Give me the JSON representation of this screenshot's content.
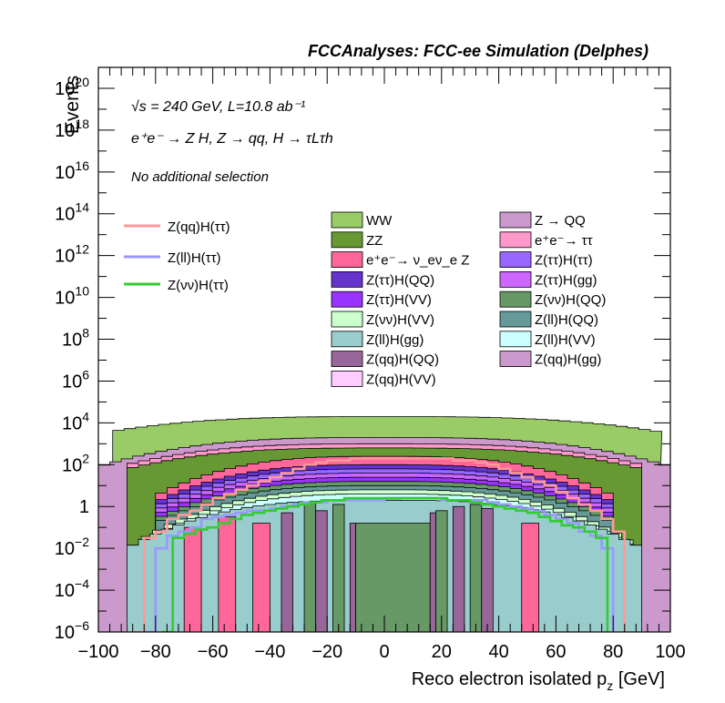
{
  "chart_data": {
    "type": "stacked-histogram-with-overlay",
    "title": "FCCAnalyses: FCC-ee Simulation (Delphes)",
    "annotations": {
      "energy_label": "√s = 240 GeV, L=10.8 ab⁻¹",
      "process_label": "e⁺e⁻ → Z H, Z → qq, H → τLτh",
      "selection_label": "No additional selection"
    },
    "xlabel": "Reco electron isolated p_z [GeV]",
    "ylabel": "Events",
    "xlim": [
      -100,
      100
    ],
    "ylim": [
      1e-06,
      1e+21
    ],
    "yscale": "log",
    "x_ticks": [
      "−100",
      "−80",
      "−60",
      "−40",
      "−20",
      "0",
      "20",
      "40",
      "60",
      "80",
      "100"
    ],
    "y_ticks": [
      {
        "base": "10",
        "exp": "−6"
      },
      {
        "base": "10",
        "exp": "−4"
      },
      {
        "base": "10",
        "exp": "−2"
      },
      {
        "base": "1",
        "exp": ""
      },
      {
        "base": "10",
        "exp": "2"
      },
      {
        "base": "10",
        "exp": "4"
      },
      {
        "base": "10",
        "exp": "6"
      },
      {
        "base": "10",
        "exp": "8"
      },
      {
        "base": "10",
        "exp": "10"
      },
      {
        "base": "10",
        "exp": "12"
      },
      {
        "base": "10",
        "exp": "14"
      },
      {
        "base": "10",
        "exp": "16"
      },
      {
        "base": "10",
        "exp": "18"
      },
      {
        "base": "10",
        "exp": "20"
      }
    ],
    "grid": false,
    "stack_envelopes": [
      {
        "name": "WW",
        "color": "#99cc66",
        "edge_pz": [
          -95,
          95
        ],
        "plateau_log10": 4.3,
        "edge_log10": 3.6
      },
      {
        "name": "Z → QQ",
        "color": "#cc99cc",
        "edge_pz": [
          -100,
          100
        ],
        "plateau_log10": 3.3,
        "edge_log10": 1.9
      },
      {
        "name": "e⁺e⁻ → ττ",
        "color": "#ff99cc",
        "edge_pz": [
          -90,
          90
        ],
        "plateau_log10": 3.0,
        "edge_log10": 2.0
      },
      {
        "name": "ZZ",
        "color": "#669933",
        "edge_pz": [
          -90,
          90
        ],
        "plateau_log10": 2.8,
        "edge_log10": 1.8
      },
      {
        "name": "e⁺e⁻ → ν_eν_e Z",
        "color": "#ff6699",
        "edge_pz": [
          -80,
          80
        ],
        "plateau_log10": 2.4,
        "edge_log10": 0.5
      },
      {
        "name": "Z(ττ)H(QQ)",
        "color": "#6633cc",
        "edge_pz": [
          -80,
          80
        ],
        "plateau_log10": 2.0,
        "edge_log10": 0.2
      },
      {
        "name": "Z(ττ)H(ττ)",
        "color": "#9966ff",
        "edge_pz": [
          -80,
          80
        ],
        "plateau_log10": 1.8,
        "edge_log10": 0.0
      },
      {
        "name": "Z(ττ)H(gg)",
        "color": "#cc66ff",
        "edge_pz": [
          -80,
          80
        ],
        "plateau_log10": 1.6,
        "edge_log10": -0.2
      },
      {
        "name": "Z(ττ)H(VV)",
        "color": "#9933ff",
        "edge_pz": [
          -80,
          80
        ],
        "plateau_log10": 1.4,
        "edge_log10": -0.4
      },
      {
        "name": "Z(νν)H(QQ)",
        "color": "#669966",
        "edge_pz": [
          -80,
          80
        ],
        "plateau_log10": 1.2,
        "edge_log10": -0.6
      },
      {
        "name": "Z(ll)H(QQ)",
        "color": "#669999",
        "edge_pz": [
          -80,
          80
        ],
        "plateau_log10": 1.0,
        "edge_log10": -0.8
      },
      {
        "name": "Z(νν)H(VV)",
        "color": "#ccffcc",
        "edge_pz": [
          -85,
          85
        ],
        "plateau_log10": 0.8,
        "edge_log10": -1.6
      },
      {
        "name": "Z(ll)H(VV)",
        "color": "#ccffff",
        "edge_pz": [
          -85,
          85
        ],
        "plateau_log10": 0.6,
        "edge_log10": -1.8
      },
      {
        "name": "Z(ll)H(gg)",
        "color": "#99cccc",
        "edge_pz": [
          -90,
          90
        ],
        "plateau_log10": 0.3,
        "edge_log10": -2.0
      }
    ],
    "spike_bars": [
      {
        "name": "e⁺e⁻ → ν_eν_e Z",
        "color": "#ff6699",
        "x0": -70,
        "x1": -64,
        "top_log10": -1.0
      },
      {
        "name": "e⁺e⁻ → ν_eν_e Z",
        "color": "#ff6699",
        "x0": -58,
        "x1": -52,
        "top_log10": -0.5
      },
      {
        "name": "e⁺e⁻ → ν_eν_e Z",
        "color": "#ff6699",
        "x0": -46,
        "x1": -40,
        "top_log10": -0.8
      },
      {
        "name": "Z(qq)H(QQ)",
        "color": "#996699",
        "x0": -36,
        "x1": -32,
        "top_log10": -0.3
      },
      {
        "name": "Z(νν)H(QQ)",
        "color": "#669966",
        "x0": -28,
        "x1": -24,
        "top_log10": 0.2
      },
      {
        "name": "Z(qq)H(QQ)",
        "color": "#996699",
        "x0": -24,
        "x1": -20,
        "top_log10": -0.2
      },
      {
        "name": "Z(νν)H(QQ)",
        "color": "#669966",
        "x0": -18,
        "x1": -14,
        "top_log10": 0.1
      },
      {
        "name": "Z(qq)H(QQ)",
        "color": "#996699",
        "x0": -12,
        "x1": -10,
        "top_log10": -0.8
      },
      {
        "name": "Z(νν)H(QQ)",
        "color": "#669966",
        "x0": -10,
        "x1": 16,
        "top_log10": -0.8
      },
      {
        "name": "Z(qq)H(QQ)",
        "color": "#996699",
        "x0": 16,
        "x1": 18,
        "top_log10": -0.3
      },
      {
        "name": "Z(νν)H(QQ)",
        "color": "#669966",
        "x0": 18,
        "x1": 22,
        "top_log10": -0.2
      },
      {
        "name": "Z(qq)H(QQ)",
        "color": "#996699",
        "x0": 24,
        "x1": 28,
        "top_log10": 0.0
      },
      {
        "name": "Z(νν)H(QQ)",
        "color": "#669966",
        "x0": 30,
        "x1": 34,
        "top_log10": 0.1
      },
      {
        "name": "Z(qq)H(QQ)",
        "color": "#996699",
        "x0": 34,
        "x1": 38,
        "top_log10": -0.1
      },
      {
        "name": "e⁺e⁻ → ν_eν_e Z",
        "color": "#ff6699",
        "x0": 48,
        "x1": 54,
        "top_log10": -0.8
      }
    ],
    "overlay_series": [
      {
        "name": "Z(qq)H(ττ)",
        "color": "#ff9999",
        "x": [
          -88,
          -84,
          -80,
          -76,
          -72,
          -68,
          -64,
          -60,
          -56,
          -52,
          -48,
          -44,
          -40,
          -36,
          -32,
          -28,
          -24,
          -20,
          -16,
          -12,
          -8,
          -4,
          0,
          4,
          8,
          12,
          16,
          20,
          24,
          28,
          32,
          36,
          40,
          44,
          48,
          52,
          56,
          60,
          64,
          68,
          72,
          76,
          80,
          84
        ],
        "y_log10": [
          -6,
          -1.5,
          -1.2,
          -0.6,
          -0.4,
          -0.2,
          0.1,
          0.4,
          0.6,
          0.8,
          1.0,
          1.2,
          1.4,
          1.6,
          1.8,
          2.0,
          2.1,
          2.2,
          2.2,
          2.3,
          2.3,
          2.3,
          2.3,
          2.3,
          2.3,
          2.3,
          2.3,
          2.3,
          2.2,
          2.2,
          2.1,
          2.0,
          1.8,
          1.6,
          1.4,
          1.2,
          1.0,
          0.7,
          0.4,
          0.1,
          -0.2,
          -0.6,
          -1.2,
          -6
        ]
      },
      {
        "name": "Z(ll)H(ττ)",
        "color": "#9999ff",
        "x": [
          -84,
          -80,
          -76,
          -72,
          -68,
          -64,
          -60,
          -56,
          -52,
          -48,
          -44,
          -40,
          -36,
          -32,
          -28,
          -24,
          -20,
          -16,
          -12,
          -8,
          -4,
          0,
          4,
          8,
          12,
          16,
          20,
          24,
          28,
          32,
          36,
          40,
          44,
          48,
          52,
          56,
          60,
          64,
          68,
          72,
          76,
          80
        ],
        "y_log10": [
          -6,
          -2.0,
          -1.4,
          -1.2,
          -1.0,
          -0.6,
          -0.5,
          -0.4,
          -0.3,
          -0.2,
          -0.2,
          -0.1,
          0.0,
          0.1,
          0.2,
          0.2,
          0.3,
          0.3,
          0.3,
          0.3,
          0.3,
          0.4,
          0.4,
          0.4,
          0.4,
          0.4,
          0.3,
          0.3,
          0.3,
          0.3,
          0.2,
          0.1,
          0.0,
          -0.1,
          -0.2,
          -0.4,
          -0.6,
          -0.8,
          -1.2,
          -1.4,
          -2.0,
          -6
        ]
      },
      {
        "name": "Z(νν)H(ττ)",
        "color": "#33cc33",
        "x": [
          -78,
          -74,
          -70,
          -66,
          -62,
          -58,
          -54,
          -50,
          -46,
          -42,
          -38,
          -34,
          -30,
          -26,
          -22,
          -18,
          -14,
          -10,
          -6,
          -2,
          2,
          6,
          10,
          14,
          18,
          22,
          26,
          30,
          34,
          38,
          42,
          46,
          50,
          54,
          58,
          62,
          66,
          70,
          74,
          78
        ],
        "y_log10": [
          -6,
          -1.5,
          -1.3,
          -1.1,
          -1.0,
          -0.8,
          -0.6,
          -0.4,
          -0.3,
          -0.2,
          -0.1,
          0.0,
          0.1,
          0.2,
          0.3,
          0.3,
          0.4,
          0.4,
          0.4,
          0.4,
          0.4,
          0.4,
          0.4,
          0.4,
          0.4,
          0.3,
          0.3,
          0.2,
          0.1,
          0.0,
          -0.1,
          -0.2,
          -0.3,
          -0.5,
          -0.7,
          -0.9,
          -1.0,
          -1.2,
          -1.5,
          -6
        ]
      }
    ],
    "legend": {
      "overlay": [
        "Z(qq)H(ττ)",
        "Z(ll)H(ττ)",
        "Z(νν)H(ττ)"
      ],
      "col1": [
        {
          "label": "WW",
          "color": "#99cc66"
        },
        {
          "label": "ZZ",
          "color": "#669933"
        },
        {
          "label": "e⁺e⁻→ ν_eν_e Z",
          "color": "#ff6699"
        },
        {
          "label": "Z(ττ)H(QQ)",
          "color": "#6633cc"
        },
        {
          "label": "Z(ττ)H(VV)",
          "color": "#9933ff"
        },
        {
          "label": "Z(νν)H(VV)",
          "color": "#ccffcc"
        },
        {
          "label": "Z(ll)H(gg)",
          "color": "#99cccc"
        },
        {
          "label": "Z(qq)H(QQ)",
          "color": "#996699"
        },
        {
          "label": "Z(qq)H(VV)",
          "color": "#ffccff"
        }
      ],
      "col2": [
        {
          "label": "Z → QQ",
          "color": "#cc99cc"
        },
        {
          "label": "e⁺e⁻→ ττ",
          "color": "#ff99cc"
        },
        {
          "label": "Z(ττ)H(ττ)",
          "color": "#9966ff"
        },
        {
          "label": "Z(ττ)H(gg)",
          "color": "#cc66ff"
        },
        {
          "label": "Z(νν)H(QQ)",
          "color": "#669966"
        },
        {
          "label": "Z(ll)H(QQ)",
          "color": "#669999"
        },
        {
          "label": "Z(ll)H(VV)",
          "color": "#ccffff"
        },
        {
          "label": "Z(qq)H(gg)",
          "color": "#cc99cc"
        }
      ]
    }
  }
}
